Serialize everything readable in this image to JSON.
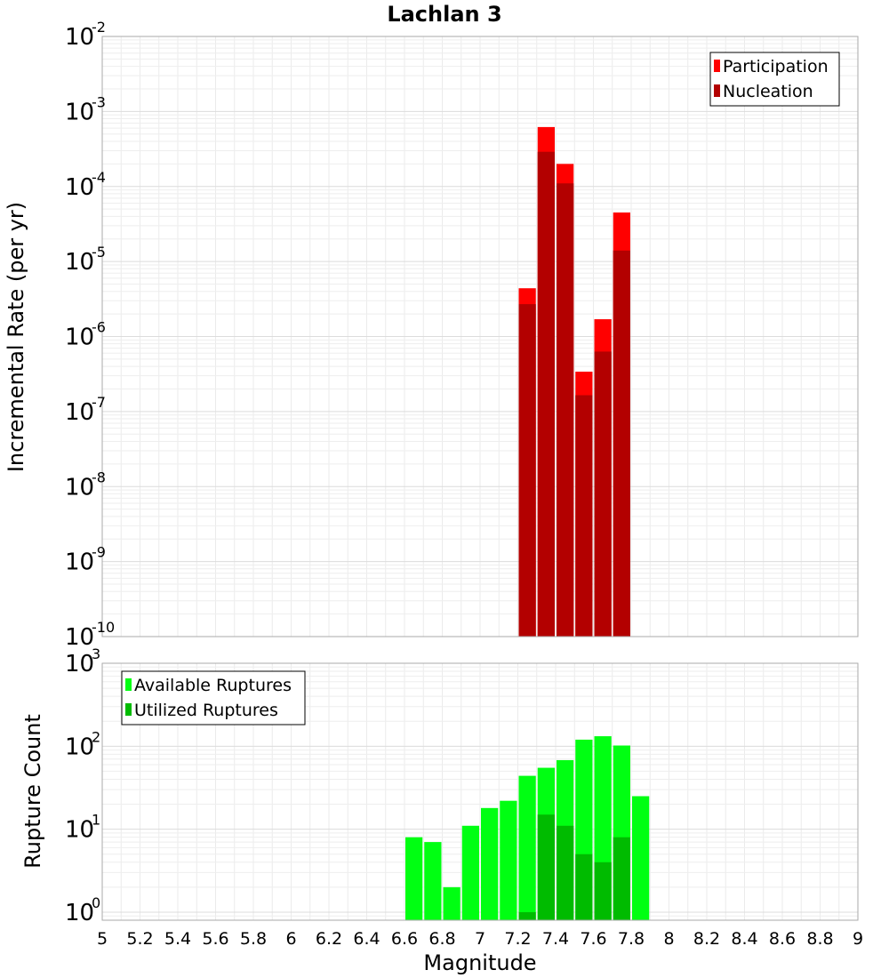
{
  "chart_data": {
    "title": "Lachlan 3",
    "xlabel": "Magnitude",
    "xlim": [
      5,
      9
    ],
    "xticks": [
      "5",
      "5.2",
      "5.4",
      "5.6",
      "5.8",
      "6",
      "6.2",
      "6.4",
      "6.6",
      "6.8",
      "7",
      "7.2",
      "7.4",
      "7.6",
      "7.8",
      "8",
      "8.2",
      "8.4",
      "8.6",
      "8.8",
      "9"
    ],
    "bin_width": 0.1,
    "panels": [
      {
        "type": "bar",
        "yscale": "log",
        "ylabel": "Incremental Rate (per yr)",
        "ylim": [
          1e-10,
          0.01
        ],
        "yticks": [
          {
            "base": "10",
            "exp": "-10"
          },
          {
            "base": "10",
            "exp": "-9"
          },
          {
            "base": "10",
            "exp": "-8"
          },
          {
            "base": "10",
            "exp": "-7"
          },
          {
            "base": "10",
            "exp": "-6"
          },
          {
            "base": "10",
            "exp": "-5"
          },
          {
            "base": "10",
            "exp": "-4"
          },
          {
            "base": "10",
            "exp": "-3"
          },
          {
            "base": "10",
            "exp": "-2"
          }
        ],
        "grid": true,
        "legend_position": "top-right",
        "x": [
          7.25,
          7.35,
          7.45,
          7.55,
          7.65,
          7.75
        ],
        "series": [
          {
            "name": "Participation",
            "color": "#ff0000",
            "values": [
              4.4e-06,
              0.00062,
              0.0002,
              3.4e-07,
              1.7e-06,
              4.5e-05
            ]
          },
          {
            "name": "Nucleation",
            "color": "#b30000",
            "values": [
              2.7e-06,
              0.00029,
              0.00011,
              1.65e-07,
              6.3e-07,
              1.4e-05
            ]
          }
        ]
      },
      {
        "type": "bar",
        "yscale": "log",
        "ylabel": "Rupture Count",
        "ylim": [
          0.8,
          1000
        ],
        "yticks": [
          {
            "base": "10",
            "exp": "0",
            "value": 1
          },
          {
            "base": "10",
            "exp": "1",
            "value": 10
          },
          {
            "base": "10",
            "exp": "2",
            "value": 100
          },
          {
            "base": "10",
            "exp": "3",
            "value": 1000
          }
        ],
        "grid": true,
        "legend_position": "top-left",
        "x": [
          6.65,
          6.75,
          6.85,
          6.95,
          7.05,
          7.15,
          7.25,
          7.35,
          7.45,
          7.55,
          7.65,
          7.75,
          7.85
        ],
        "series": [
          {
            "name": "Available Ruptures",
            "color": "#00ff12",
            "values": [
              8,
              7,
              2,
              11,
              18,
              22,
              44,
              55,
              68,
              120,
              132,
              102,
              25
            ]
          },
          {
            "name": "Utilized Ruptures",
            "color": "#00bb00",
            "values": [
              0,
              0,
              0,
              0,
              0,
              0,
              1,
              15,
              11,
              5,
              4,
              8,
              0
            ]
          }
        ]
      }
    ]
  }
}
